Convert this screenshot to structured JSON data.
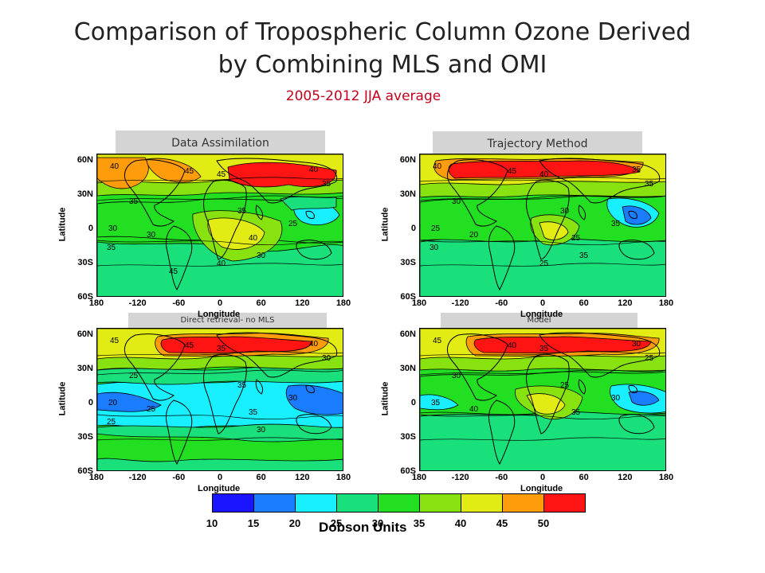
{
  "title_line1": "Comparison of Tropospheric Column Ozone Derived",
  "title_line2": "by Combining MLS and OMI",
  "subtitle": "2005-2012 JJA average",
  "panels": [
    {
      "label": "Data Assimilation",
      "variant": "assim"
    },
    {
      "label": "Trajectory Method",
      "variant": "traj"
    },
    {
      "label": "Direct retrieval- no MLS",
      "variant": "direct"
    },
    {
      "label": "Model",
      "variant": "model"
    }
  ],
  "axes": {
    "xlabel": "Longitude",
    "ylabel": "Latitude",
    "xticks": [
      "180",
      "-120",
      "-60",
      "0",
      "60",
      "120",
      "180"
    ],
    "yticks": [
      "60N",
      "30N",
      "0",
      "30S",
      "60S"
    ]
  },
  "colorbar": {
    "label": "Dobson Units",
    "ticks": [
      "10",
      "15",
      "20",
      "25",
      "30",
      "35",
      "40",
      "45",
      "50"
    ],
    "colors": [
      "#1b14ff",
      "#1a7cff",
      "#19f0ff",
      "#19e07a",
      "#22df22",
      "#88e20f",
      "#e2ec14",
      "#ff9c0b",
      "#ff1414"
    ]
  },
  "chart_data": [
    {
      "type": "heatmap",
      "title": "Data Assimilation",
      "xlabel": "Longitude",
      "ylabel": "Latitude",
      "xlim": [
        -180,
        180
      ],
      "ylim": [
        -60,
        60
      ],
      "units": "Dobson Units",
      "contour_labels": [
        "40",
        "45",
        "45",
        "40",
        "35",
        "35",
        "30",
        "30",
        "40",
        "25",
        "35",
        "35",
        "30",
        "40",
        "45"
      ]
    },
    {
      "type": "heatmap",
      "title": "Trajectory Method",
      "xlabel": "Longitude",
      "ylabel": "Latitude",
      "xlim": [
        -180,
        180
      ],
      "ylim": [
        -60,
        60
      ],
      "units": "Dobson Units",
      "contour_labels": [
        "40",
        "45",
        "40",
        "35",
        "35",
        "30",
        "25",
        "20",
        "25",
        "35",
        "30",
        "30",
        "35",
        "25"
      ]
    },
    {
      "type": "heatmap",
      "title": "Direct retrieval- no MLS",
      "xlabel": "Longitude",
      "ylabel": "Latitude",
      "xlim": [
        -180,
        180
      ],
      "ylim": [
        -60,
        60
      ],
      "units": "Dobson Units",
      "contour_labels": [
        "45",
        "45",
        "35",
        "40",
        "30",
        "25",
        "20",
        "25",
        "35",
        "30",
        "35",
        "25",
        "30"
      ]
    },
    {
      "type": "heatmap",
      "title": "Model",
      "xlabel": "Longitude",
      "ylabel": "Latitude",
      "xlim": [
        -180,
        180
      ],
      "ylim": [
        -60,
        60
      ],
      "units": "Dobson Units",
      "contour_labels": [
        "45",
        "40",
        "35",
        "30",
        "25",
        "30",
        "35",
        "40",
        "35",
        "30",
        "25"
      ]
    }
  ]
}
